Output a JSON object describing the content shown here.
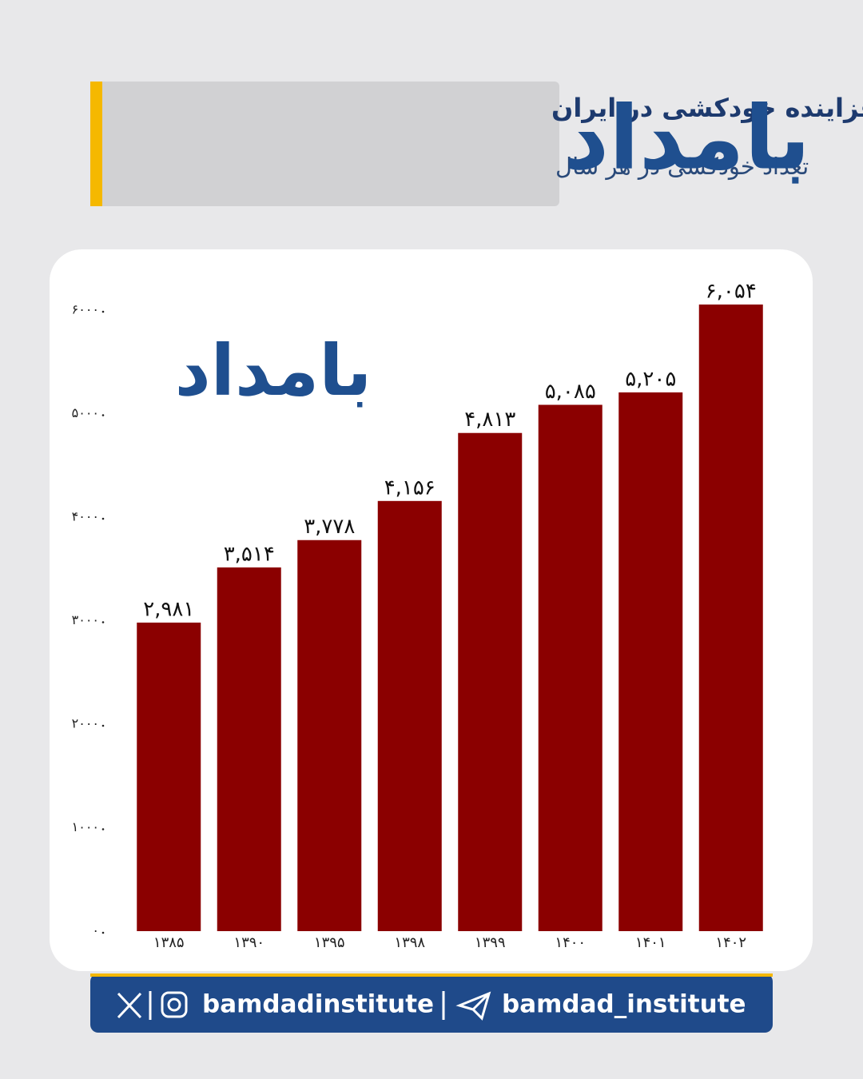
{
  "brand": "بامداد",
  "header": {
    "title": "روند فزاینده خودکشی در ایران",
    "subtitle": "تعداد خودکشی در هر سال"
  },
  "chart_data": {
    "type": "bar",
    "categories": [
      "۱۳۸۵",
      "۱۳۹۰",
      "۱۳۹۵",
      "۱۳۹۸",
      "۱۳۹۹",
      "۱۴۰۰",
      "۱۴۰۱",
      "۱۴۰۲"
    ],
    "values": [
      2981,
      3514,
      3778,
      4156,
      4813,
      5085,
      5205,
      6054
    ],
    "value_labels": [
      "۲,۹۸۱",
      "۳,۵۱۴",
      "۳,۷۷۸",
      "۴,۱۵۶",
      "۴,۸۱۳",
      "۵,۰۸۵",
      "۵,۲۰۵",
      "۶,۰۵۴"
    ],
    "color": "#8b0000",
    "ylim": [
      0,
      6300
    ],
    "yticks": [
      {
        "value": 0,
        "label": "۰"
      },
      {
        "value": 1000,
        "label": "۱۰۰۰"
      },
      {
        "value": 2000,
        "label": "۲۰۰۰"
      },
      {
        "value": 3000,
        "label": "۳۰۰۰"
      },
      {
        "value": 4000,
        "label": "۴۰۰۰"
      },
      {
        "value": 5000,
        "label": "۵۰۰۰"
      },
      {
        "value": 6000,
        "label": "۶۰۰۰"
      }
    ]
  },
  "footer": {
    "handle1": "bamdadinstitute",
    "handle2": "bamdad_institute"
  }
}
